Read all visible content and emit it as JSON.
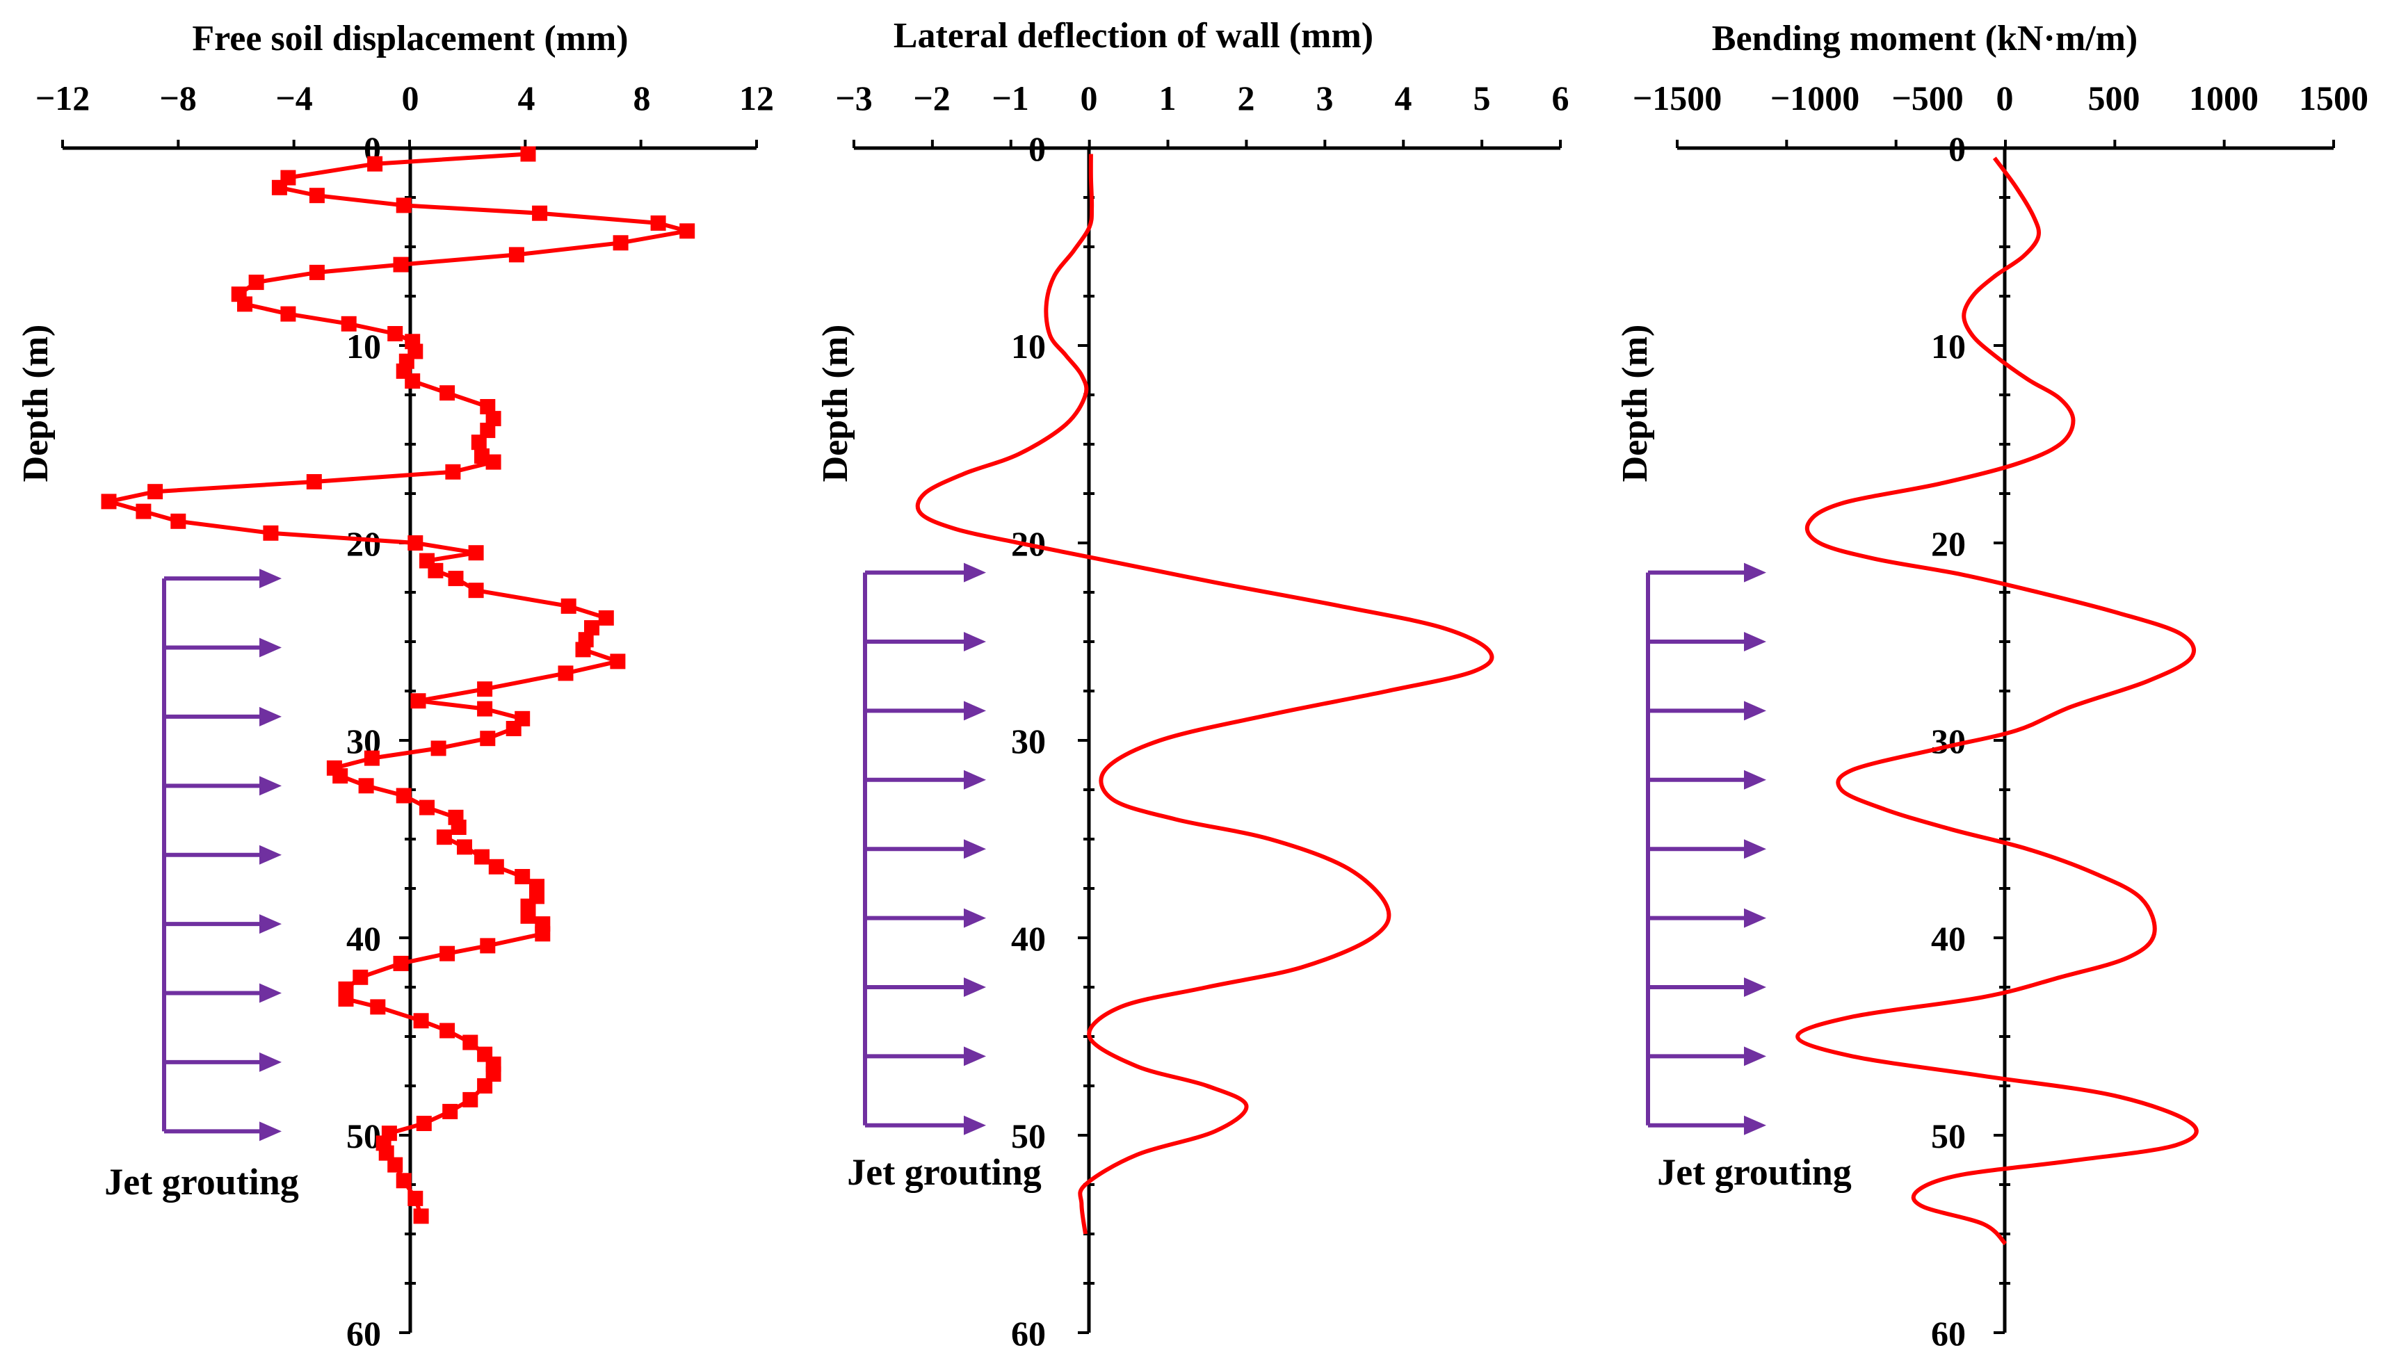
{
  "figure": {
    "colors": {
      "data": "#ff0000",
      "arrow": "#7030a0",
      "axis": "#000000"
    },
    "jet_label": "Jet grouting"
  },
  "chart_data": [
    {
      "type": "line",
      "title": "Free soil displacement  (mm)",
      "xlabel": "Free soil displacement  (mm)",
      "ylabel": "Depth  (m)",
      "xlim": [
        -12,
        12
      ],
      "ylim": [
        0,
        60
      ],
      "xticks": [
        -12,
        -8,
        -4,
        0,
        4,
        8,
        12
      ],
      "xtick_labels": [
        "−12",
        "−8",
        "−4",
        "0",
        "4",
        "8",
        "12"
      ],
      "yticks": [
        0,
        10,
        20,
        30,
        40,
        50,
        60
      ],
      "ytick_labels": [
        "0",
        "10",
        "20",
        "30",
        "40",
        "50",
        "60"
      ],
      "markers": true,
      "jet_grouting_depths": [
        21.8,
        25.3,
        28.8,
        32.3,
        35.8,
        39.3,
        42.8,
        46.3,
        49.8
      ],
      "series": [
        {
          "name": "Free soil displacement",
          "x": [
            4.1,
            -1.2,
            -4.2,
            -4.5,
            -3.2,
            -0.2,
            4.5,
            8.6,
            9.6,
            7.3,
            3.7,
            -0.3,
            -3.2,
            -5.3,
            -5.9,
            -5.7,
            -4.2,
            -2.1,
            -0.5,
            0.1,
            0.2,
            -0.1,
            -0.2,
            0.1,
            1.3,
            2.7,
            2.9,
            2.7,
            2.4,
            2.5,
            2.9,
            1.5,
            -3.3,
            -8.8,
            -10.4,
            -9.2,
            -8.0,
            -4.8,
            0.2,
            2.3,
            0.6,
            0.9,
            1.6,
            2.3,
            5.5,
            6.8,
            6.3,
            6.1,
            6.0,
            7.2,
            5.4,
            2.6,
            0.3,
            2.6,
            3.9,
            3.6,
            2.7,
            1.0,
            -1.3,
            -2.6,
            -2.4,
            -1.5,
            -0.2,
            0.6,
            1.6,
            1.7,
            1.2,
            1.9,
            2.5,
            3.0,
            3.9,
            4.4,
            4.4,
            4.1,
            4.1,
            4.6,
            4.6,
            2.7,
            1.3,
            -0.3,
            -1.7,
            -2.2,
            -2.2,
            -1.1,
            0.4,
            1.3,
            2.1,
            2.6,
            2.9,
            2.9,
            2.6,
            2.1,
            1.4,
            0.5,
            -0.7,
            -0.9,
            -0.8,
            -0.5,
            -0.2,
            0.2,
            0.4
          ],
          "y": [
            0.3,
            0.8,
            1.5,
            2.0,
            2.4,
            2.9,
            3.3,
            3.8,
            4.2,
            4.8,
            5.4,
            5.9,
            6.3,
            6.8,
            7.4,
            7.9,
            8.4,
            8.9,
            9.4,
            9.8,
            10.3,
            10.8,
            11.3,
            11.8,
            12.4,
            13.1,
            13.7,
            14.3,
            14.9,
            15.6,
            15.9,
            16.4,
            16.9,
            17.4,
            17.9,
            18.4,
            18.9,
            19.5,
            20.0,
            20.5,
            20.9,
            21.4,
            21.8,
            22.4,
            23.2,
            23.8,
            24.3,
            24.9,
            25.4,
            26.0,
            26.6,
            27.4,
            28.0,
            28.4,
            28.9,
            29.4,
            29.9,
            30.4,
            30.9,
            31.4,
            31.8,
            32.3,
            32.8,
            33.4,
            33.9,
            34.4,
            34.9,
            35.4,
            35.9,
            36.4,
            36.9,
            37.4,
            37.9,
            38.4,
            38.9,
            39.3,
            39.8,
            40.4,
            40.8,
            41.3,
            42.0,
            42.6,
            43.1,
            43.5,
            44.2,
            44.7,
            45.3,
            45.9,
            46.4,
            46.9,
            47.5,
            48.2,
            48.8,
            49.4,
            49.9,
            50.4,
            50.9,
            51.5,
            52.3,
            53.2,
            54.1
          ]
        }
      ]
    },
    {
      "type": "line",
      "title": "Lateral deflection of wall  (mm)",
      "xlabel": "Lateral deflection of wall  (mm)",
      "ylabel": "Depth  (m)",
      "xlim": [
        -3,
        6
      ],
      "ylim": [
        0,
        60
      ],
      "xticks": [
        -3,
        -2,
        -1,
        0,
        1,
        2,
        3,
        4,
        5,
        6
      ],
      "xtick_labels": [
        "−3",
        "−2",
        "−1",
        "0",
        "1",
        "2",
        "3",
        "4",
        "5",
        "6"
      ],
      "yticks": [
        0,
        10,
        20,
        30,
        40,
        50,
        60
      ],
      "ytick_labels": [
        "0",
        "10",
        "20",
        "30",
        "40",
        "50",
        "60"
      ],
      "markers": false,
      "jet_grouting_depths": [
        21.5,
        25.0,
        28.5,
        32.0,
        35.5,
        39.0,
        42.5,
        46.0,
        49.5
      ],
      "series": [
        {
          "name": "Lateral deflection of wall",
          "x": [
            0.02,
            0.02,
            0.03,
            0.0,
            -0.2,
            -0.45,
            -0.55,
            -0.5,
            -0.3,
            -0.1,
            -0.05,
            -0.3,
            -0.9,
            -1.6,
            -2.1,
            -2.15,
            -1.7,
            -0.9,
            0.1,
            1.6,
            3.2,
            4.5,
            5.1,
            4.9,
            3.8,
            2.3,
            0.9,
            0.2,
            0.3,
            1.1,
            2.3,
            3.3,
            3.8,
            3.6,
            2.7,
            1.5,
            0.4,
            0.0,
            0.6,
            1.5,
            2.0,
            1.6,
            0.6,
            -0.05,
            -0.1,
            -0.05
          ],
          "y": [
            0.3,
            1.5,
            3.0,
            4.0,
            5.2,
            6.5,
            8.0,
            9.5,
            10.5,
            11.5,
            12.5,
            14.0,
            15.5,
            16.5,
            17.5,
            18.5,
            19.3,
            20.0,
            20.8,
            22.0,
            23.2,
            24.3,
            25.5,
            26.5,
            27.5,
            28.7,
            30.0,
            31.5,
            33.0,
            34.0,
            35.0,
            36.5,
            38.5,
            40.0,
            41.5,
            42.5,
            43.5,
            45.0,
            46.5,
            47.5,
            48.5,
            49.8,
            51.0,
            52.5,
            53.5,
            55.0
          ]
        }
      ]
    },
    {
      "type": "line",
      "title": "Bending moment  (kN·m/m)",
      "xlabel": "Bending moment  (kN·m/m)",
      "ylabel": "Depth  (m)",
      "xlim": [
        -1500,
        1500
      ],
      "ylim": [
        0,
        60
      ],
      "xticks": [
        -1500,
        -1000,
        -500,
        0,
        500,
        1000,
        1500
      ],
      "xtick_labels": [
        "−1500",
        "−1000",
        "−500",
        "0",
        "500",
        "1000",
        "1500"
      ],
      "yticks": [
        0,
        10,
        20,
        30,
        40,
        50,
        60
      ],
      "ytick_labels": [
        "0",
        "10",
        "20",
        "30",
        "40",
        "50",
        "60"
      ],
      "markers": false,
      "jet_grouting_depths": [
        21.5,
        25.0,
        28.5,
        32.0,
        35.5,
        39.0,
        42.5,
        46.0,
        49.5
      ],
      "series": [
        {
          "name": "Bending moment",
          "x": [
            -50,
            50,
            130,
            150,
            80,
            -50,
            -150,
            -190,
            -150,
            -50,
            100,
            250,
            310,
            250,
            50,
            -300,
            -750,
            -900,
            -850,
            -600,
            -200,
            150,
            500,
            800,
            850,
            650,
            300,
            50,
            -300,
            -700,
            -750,
            -550,
            -250,
            100,
            400,
            620,
            680,
            560,
            250,
            -100,
            -700,
            -950,
            -700,
            -100,
            500,
            850,
            780,
            300,
            -200,
            -400,
            -380,
            -100,
            0
          ],
          "y": [
            0.5,
            2.0,
            3.5,
            4.5,
            5.5,
            6.5,
            7.5,
            8.5,
            9.5,
            10.5,
            11.7,
            12.7,
            13.8,
            15.0,
            16.0,
            17.0,
            18.0,
            19.0,
            20.0,
            20.8,
            21.6,
            22.5,
            23.5,
            24.6,
            25.8,
            27.0,
            28.3,
            29.5,
            30.4,
            31.5,
            32.5,
            33.5,
            34.5,
            35.5,
            36.7,
            38.0,
            39.8,
            41.0,
            42.0,
            43.0,
            44.0,
            45.0,
            46.0,
            47.0,
            48.0,
            49.4,
            50.5,
            51.3,
            52.0,
            52.8,
            53.6,
            54.5,
            55.5
          ]
        }
      ]
    }
  ]
}
